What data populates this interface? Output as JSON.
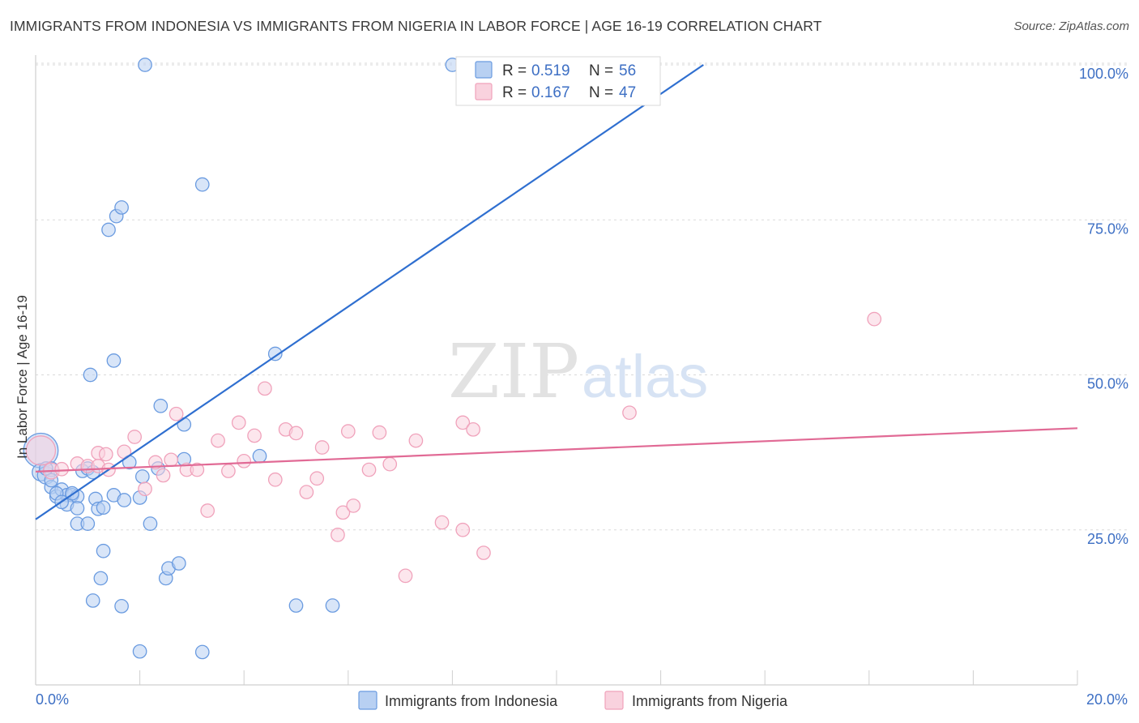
{
  "title": "IMMIGRANTS FROM INDONESIA VS IMMIGRANTS FROM NIGERIA IN LABOR FORCE | AGE 16-19 CORRELATION CHART",
  "source": "Source: ZipAtlas.com",
  "watermark": {
    "zip": "ZIP",
    "atlas": "atlas"
  },
  "chart_data": {
    "type": "scatter",
    "title": "IMMIGRANTS FROM INDONESIA VS IMMIGRANTS FROM NIGERIA IN LABOR FORCE | AGE 16-19 CORRELATION CHART",
    "xlabel": "",
    "ylabel": "In Labor Force | Age 16-19",
    "xlim": [
      0,
      20
    ],
    "ylim": [
      0,
      104
    ],
    "x_tick_labels": {
      "min": "0.0%",
      "max": "20.0%"
    },
    "y_ticks": [
      25,
      50,
      75,
      100
    ],
    "y_tick_labels": [
      "25.0%",
      "50.0%",
      "75.0%",
      "100.0%"
    ],
    "grid": true,
    "legend": {
      "position": "top-center",
      "entries": [
        {
          "r_label": "R =",
          "r_value": "0.519",
          "n_label": "N =",
          "n_value": "56"
        },
        {
          "r_label": "R =",
          "r_value": "0.167",
          "n_label": "N =",
          "n_value": "47"
        }
      ]
    },
    "series": [
      {
        "name": "Immigrants from Indonesia",
        "color": "#6a9be0",
        "fill": "#b8d0f2",
        "trend": {
          "x": [
            0,
            12.82
          ],
          "y": [
            26.7,
            100.0
          ],
          "color": "#2f6fd0"
        },
        "points": [
          [
            0.1,
            37.8,
            26
          ],
          [
            0.1,
            34.3,
            13
          ],
          [
            0.2,
            33.8,
            13
          ],
          [
            0.3,
            34.8,
            11
          ],
          [
            0.3,
            31.9,
            10
          ],
          [
            0.4,
            30.4,
            10
          ],
          [
            0.5,
            31.5,
            10
          ],
          [
            0.6,
            30.6,
            10
          ],
          [
            0.7,
            30.6,
            10
          ],
          [
            0.8,
            30.4,
            10
          ],
          [
            0.6,
            29.1,
            10
          ],
          [
            0.8,
            26.0,
            10
          ],
          [
            0.8,
            28.5,
            10
          ],
          [
            0.9,
            34.5,
            10
          ],
          [
            1.0,
            34.9,
            10
          ],
          [
            1.0,
            26.0,
            10
          ],
          [
            1.1,
            34.3,
            10
          ],
          [
            1.15,
            30.0,
            10
          ],
          [
            1.2,
            28.4,
            10
          ],
          [
            1.3,
            28.6,
            10
          ],
          [
            1.3,
            21.6,
            10
          ],
          [
            1.25,
            17.2,
            10
          ],
          [
            1.1,
            13.6,
            10
          ],
          [
            1.5,
            30.6,
            10
          ],
          [
            1.7,
            29.8,
            10
          ],
          [
            1.65,
            12.7,
            10
          ],
          [
            1.8,
            35.9,
            10
          ],
          [
            2.0,
            30.2,
            10
          ],
          [
            2.0,
            5.4,
            10
          ],
          [
            2.05,
            33.6,
            10
          ],
          [
            2.2,
            26.0,
            10
          ],
          [
            2.35,
            34.9,
            10
          ],
          [
            2.5,
            17.2,
            10
          ],
          [
            2.55,
            18.8,
            10
          ],
          [
            2.75,
            19.6,
            10
          ],
          [
            2.85,
            36.4,
            10
          ],
          [
            2.85,
            42.0,
            10
          ],
          [
            2.4,
            45.0,
            10
          ],
          [
            3.2,
            5.3,
            10
          ],
          [
            4.3,
            36.9,
            10
          ],
          [
            5.0,
            12.8,
            10
          ],
          [
            5.7,
            12.8,
            10
          ],
          [
            4.6,
            53.4,
            10
          ],
          [
            1.5,
            52.3,
            10
          ],
          [
            1.05,
            50.0,
            10
          ],
          [
            1.4,
            73.4,
            10
          ],
          [
            1.55,
            75.6,
            10
          ],
          [
            1.65,
            77.0,
            10
          ],
          [
            3.2,
            80.7,
            10
          ],
          [
            2.1,
            100.0,
            10
          ],
          [
            8.0,
            100.0,
            10
          ],
          [
            0.2,
            34.9,
            10
          ],
          [
            0.4,
            30.9,
            10
          ],
          [
            0.7,
            30.9,
            10
          ],
          [
            0.3,
            33.0,
            10
          ],
          [
            0.5,
            29.5,
            10
          ]
        ]
      },
      {
        "name": "Immigrants from Nigeria",
        "color": "#f0a2bb",
        "fill": "#f9d2de",
        "trend": {
          "x": [
            0,
            20
          ],
          "y": [
            34.4,
            41.4
          ],
          "color": "#e16a95"
        },
        "points": [
          [
            0.1,
            37.8,
            22
          ],
          [
            0.3,
            34.5,
            12
          ],
          [
            0.5,
            34.8,
            10
          ],
          [
            0.8,
            35.7,
            10
          ],
          [
            1.0,
            35.3,
            10
          ],
          [
            1.2,
            37.4,
            10
          ],
          [
            1.2,
            35.3,
            10
          ],
          [
            1.35,
            37.2,
            10
          ],
          [
            1.4,
            34.7,
            10
          ],
          [
            1.7,
            37.6,
            10
          ],
          [
            1.9,
            40.0,
            10
          ],
          [
            2.1,
            31.6,
            10
          ],
          [
            2.3,
            35.9,
            10
          ],
          [
            2.45,
            33.8,
            10
          ],
          [
            2.6,
            36.3,
            10
          ],
          [
            2.7,
            43.7,
            10
          ],
          [
            2.9,
            34.7,
            10
          ],
          [
            3.1,
            34.7,
            10
          ],
          [
            3.3,
            28.1,
            10
          ],
          [
            3.5,
            39.4,
            10
          ],
          [
            3.7,
            34.5,
            10
          ],
          [
            3.9,
            42.3,
            10
          ],
          [
            4.0,
            36.1,
            10
          ],
          [
            4.2,
            40.2,
            10
          ],
          [
            4.4,
            47.8,
            10
          ],
          [
            4.6,
            33.1,
            10
          ],
          [
            4.8,
            41.2,
            10
          ],
          [
            5.0,
            40.6,
            10
          ],
          [
            5.2,
            31.1,
            10
          ],
          [
            5.4,
            33.3,
            10
          ],
          [
            5.5,
            38.3,
            10
          ],
          [
            5.8,
            24.2,
            10
          ],
          [
            5.9,
            27.8,
            10
          ],
          [
            6.0,
            40.9,
            10
          ],
          [
            6.1,
            28.9,
            10
          ],
          [
            6.4,
            34.7,
            10
          ],
          [
            6.6,
            40.7,
            10
          ],
          [
            6.8,
            35.6,
            10
          ],
          [
            7.1,
            17.6,
            10
          ],
          [
            7.3,
            39.4,
            10
          ],
          [
            7.8,
            26.2,
            10
          ],
          [
            8.2,
            42.3,
            10
          ],
          [
            8.2,
            25.0,
            10
          ],
          [
            8.4,
            41.2,
            10
          ],
          [
            8.6,
            21.3,
            10
          ],
          [
            11.4,
            43.9,
            10
          ],
          [
            16.1,
            59.0,
            10
          ]
        ]
      }
    ]
  }
}
